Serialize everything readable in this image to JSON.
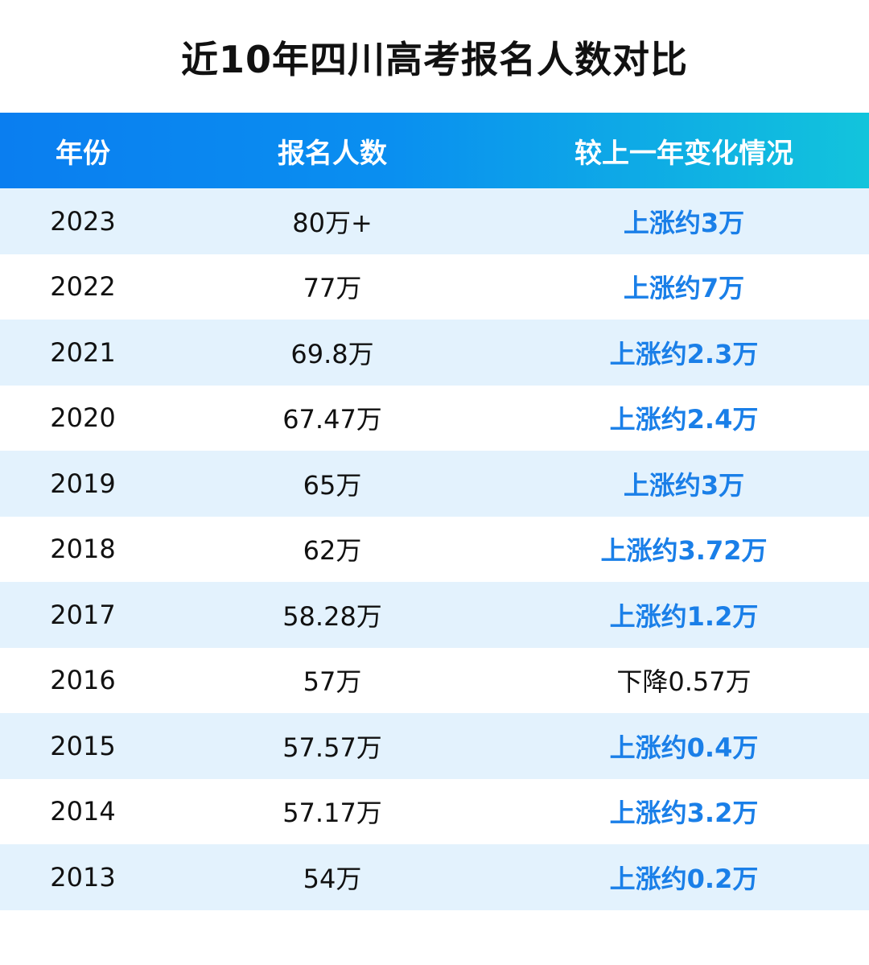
{
  "title": "近10年四川高考报名人数对比",
  "table": {
    "headers": [
      "年份",
      "报名人数",
      "较上一年变化情况"
    ],
    "rows": [
      {
        "year": "2023",
        "count": "80万+",
        "change": "上涨约3万",
        "trend": "up"
      },
      {
        "year": "2022",
        "count": "77万",
        "change": "上涨约7万",
        "trend": "up"
      },
      {
        "year": "2021",
        "count": "69.8万",
        "change": "上涨约2.3万",
        "trend": "up"
      },
      {
        "year": "2020",
        "count": "67.47万",
        "change": "上涨约2.4万",
        "trend": "up"
      },
      {
        "year": "2019",
        "count": "65万",
        "change": "上涨约3万",
        "trend": "up"
      },
      {
        "year": "2018",
        "count": "62万",
        "change": "上涨约3.72万",
        "trend": "up"
      },
      {
        "year": "2017",
        "count": "58.28万",
        "change": "上涨约1.2万",
        "trend": "up"
      },
      {
        "year": "2016",
        "count": "57万",
        "change": "下降0.57万",
        "trend": "down"
      },
      {
        "year": "2015",
        "count": "57.57万",
        "change": "上涨约0.4万",
        "trend": "up"
      },
      {
        "year": "2014",
        "count": "57.17万",
        "change": "上涨约3.2万",
        "trend": "up"
      },
      {
        "year": "2013",
        "count": "54万",
        "change": "上涨约0.2万",
        "trend": "up"
      }
    ]
  },
  "colors": {
    "header_gradient_start": "#0a7ef0",
    "header_gradient_end": "#12c4dc",
    "row_shade": "#e3f2fd",
    "increase_text": "#1a7fe8",
    "decrease_text": "#111111"
  }
}
